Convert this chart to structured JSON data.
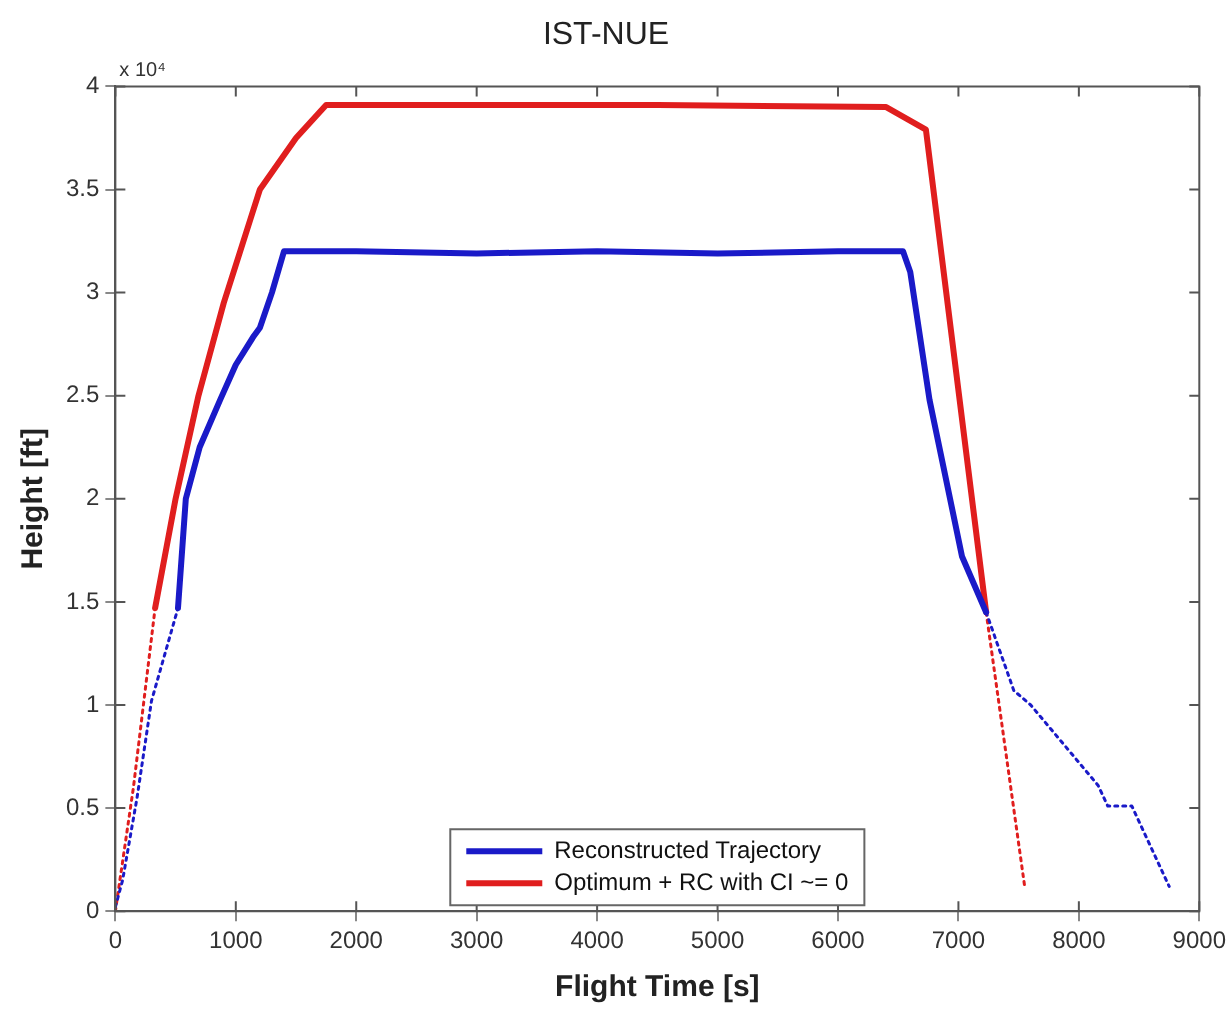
{
  "chart_data": {
    "type": "line",
    "title": "IST-NUE",
    "xlabel": "Flight Time [s]",
    "ylabel": "Height [ft]",
    "annotations": [
      "x 10⁴"
    ],
    "xlim": [
      0,
      9000
    ],
    "xticks": [
      0,
      1000,
      2000,
      3000,
      4000,
      5000,
      6000,
      7000,
      8000,
      9000
    ],
    "ylim": [
      0,
      4
    ],
    "yticks": [
      0,
      0.5,
      1,
      1.5,
      2,
      2.5,
      3,
      3.5,
      4
    ],
    "grid": false,
    "legend": "bottom",
    "marker": "none",
    "series": [
      {
        "name": "Reconstructed Trajectory",
        "color": "#1a1ac8",
        "line_style": "solid",
        "x": [
          520,
          585,
          700,
          870,
          1000,
          1150,
          1200,
          1300,
          1400,
          2000,
          3000,
          4000,
          5000,
          6000,
          6540,
          6600,
          6760,
          7030,
          7230
        ],
        "values": [
          1.47,
          2,
          2.25,
          2.48,
          2.65,
          2.79,
          2.83,
          3,
          3.2,
          3.2,
          3.19,
          3.2,
          3.19,
          3.2,
          3.2,
          3.1,
          2.48,
          1.72,
          1.45
        ]
      },
      {
        "name": "Optimum + RC with CI ~= 0",
        "color": "#e01e1e",
        "line_style": "solid",
        "x": [
          330,
          500,
          690,
          900,
          1200,
          1500,
          1750,
          3000,
          4500,
          6400,
          6730,
          7230
        ],
        "values": [
          1.47,
          2,
          2.5,
          2.95,
          3.5,
          3.75,
          3.91,
          3.91,
          3.91,
          3.9,
          3.79,
          1.45
        ]
      },
      {
        "color": "#1a1ac8",
        "line_style": "dotted",
        "x": [
          0,
          60,
          180,
          300,
          520
        ],
        "values": [
          0.02,
          0.15,
          0.55,
          1.02,
          1.47
        ]
      },
      {
        "color": "#1a1ac8",
        "line_style": "dotted",
        "x": [
          7230,
          7460,
          7600,
          8160,
          8240,
          8440,
          8750
        ],
        "values": [
          1.45,
          1.07,
          1,
          0.61,
          0.51,
          0.51,
          0.12
        ]
      },
      {
        "color": "#e01e1e",
        "line_style": "dotted",
        "x": [
          0,
          150,
          330
        ],
        "values": [
          0,
          0.6,
          1.47
        ]
      },
      {
        "color": "#e01e1e",
        "line_style": "dotted",
        "x": [
          7230,
          7550
        ],
        "values": [
          1.45,
          0.12
        ]
      }
    ]
  }
}
